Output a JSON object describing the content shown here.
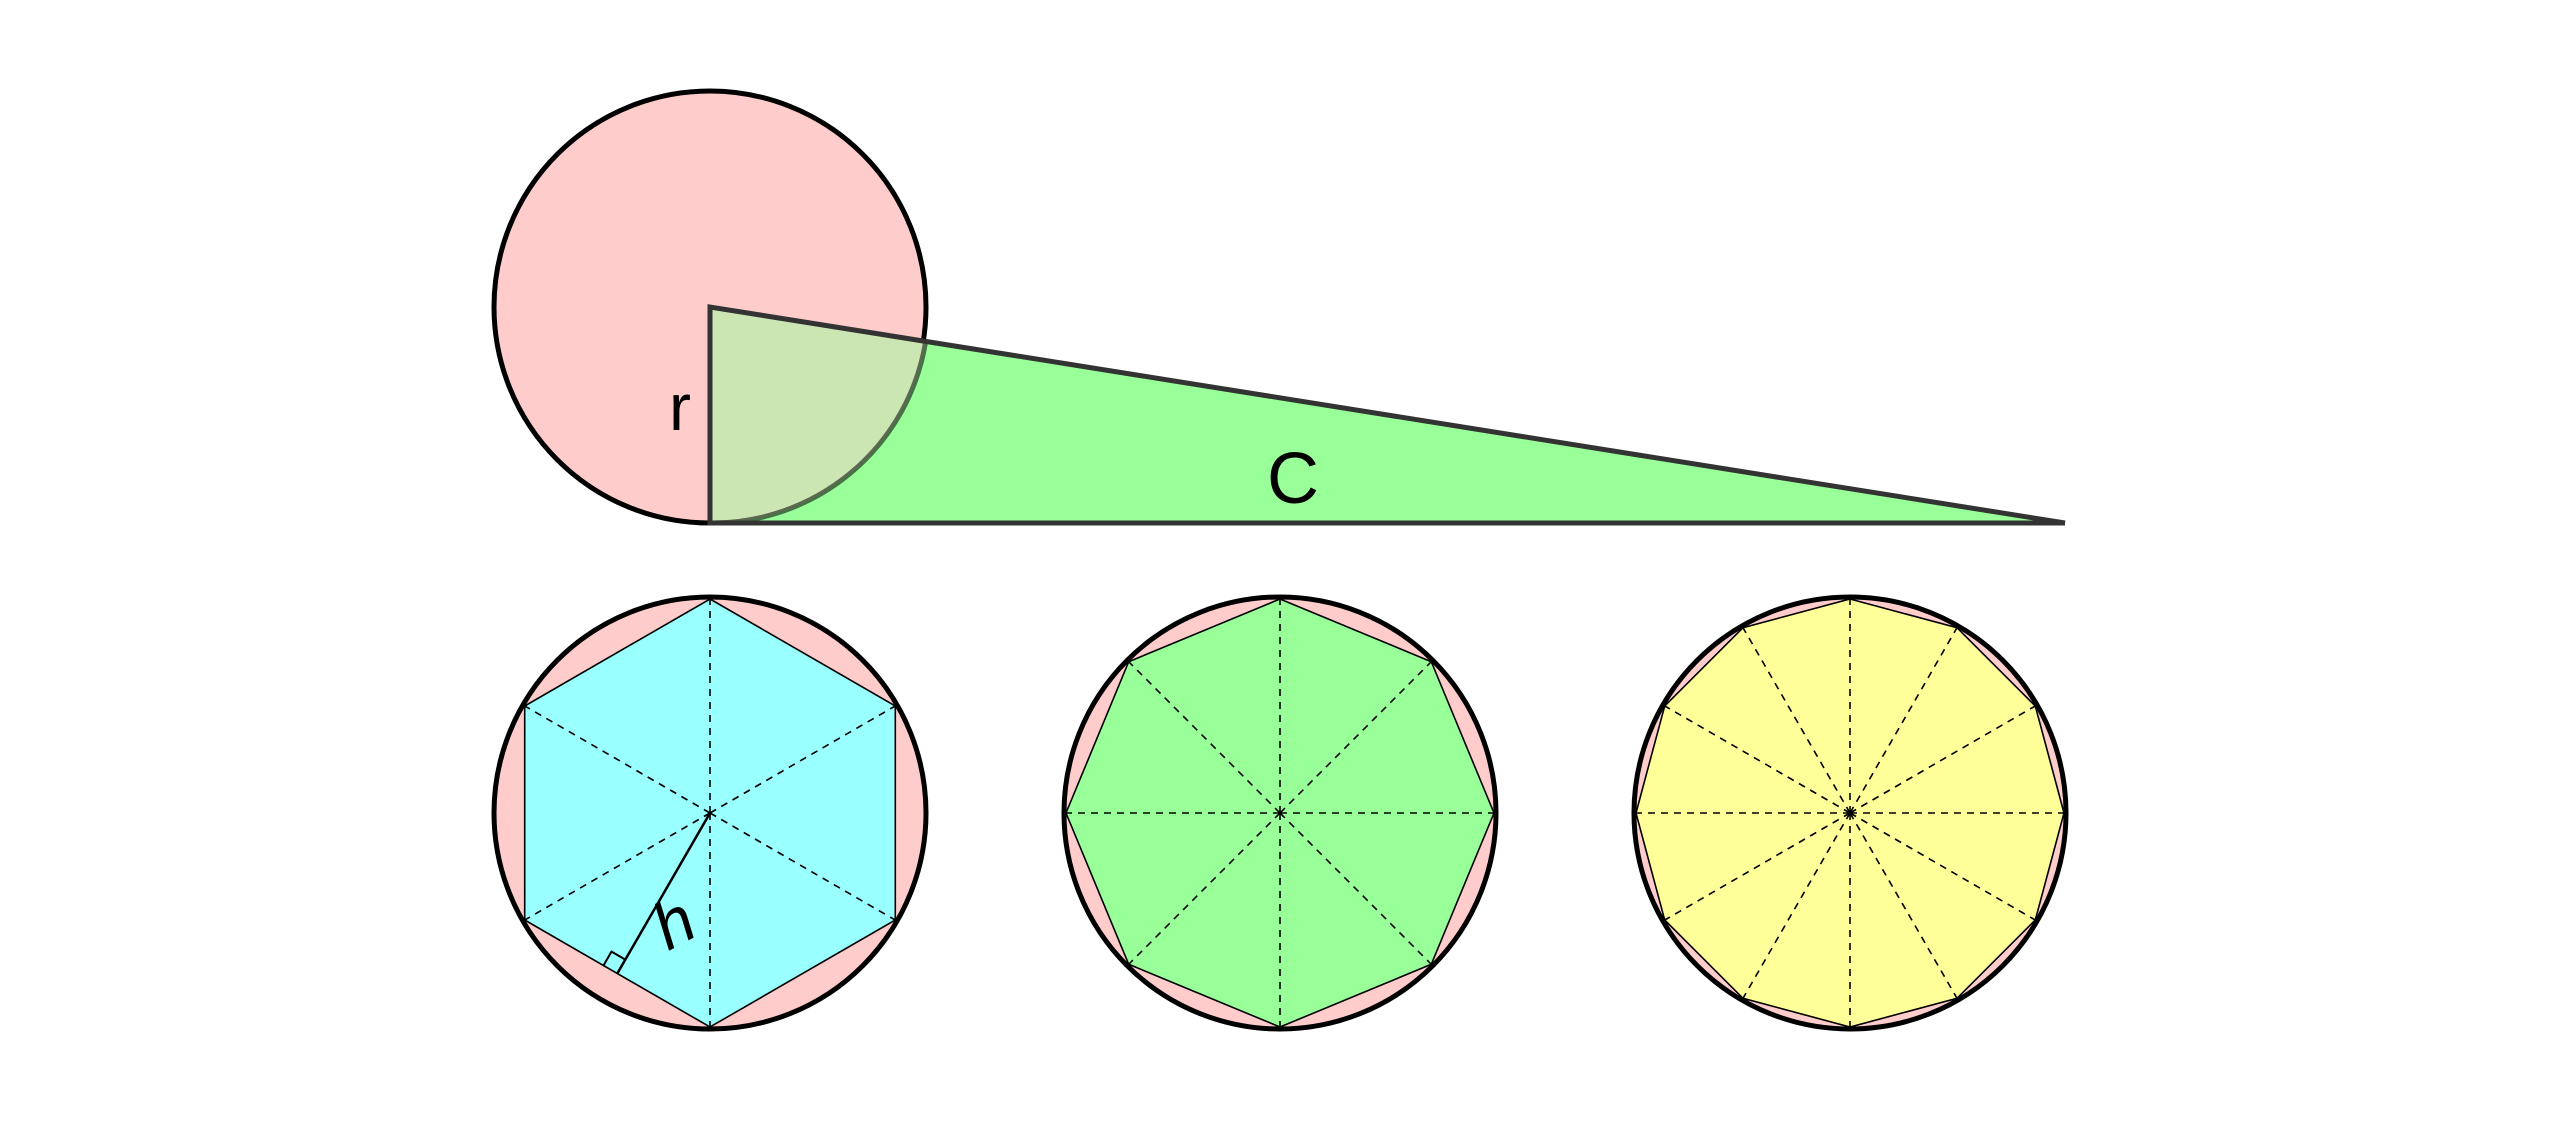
{
  "labels": {
    "radius": "r",
    "circumference": "C",
    "apothem": "h"
  },
  "colors": {
    "circle_fill": "#ffcccc",
    "triangle_fill": "#99ff99",
    "overlap_fill": "#cce6b3",
    "hexagon_fill": "#99ffff",
    "octagon_fill": "#99ff99",
    "dodecagon_fill": "#ffff99",
    "stroke": "#000000"
  },
  "polygons": [
    {
      "sides": 6
    },
    {
      "sides": 8
    },
    {
      "sides": 12
    }
  ]
}
